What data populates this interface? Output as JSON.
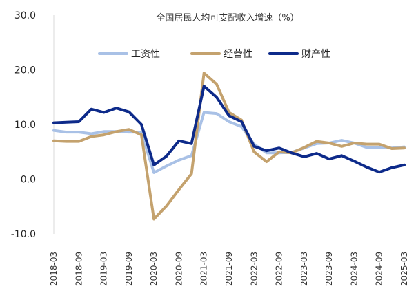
{
  "chart_data": {
    "type": "line",
    "title": "全国居民人均可支配收入增速（%）",
    "xlabel": "",
    "ylabel": "",
    "ylim": [
      -10,
      30
    ],
    "yticks": [
      "30.0",
      "20.0",
      "10.0",
      "0.0",
      "-10.0"
    ],
    "ytick_values": [
      30,
      20,
      10,
      0,
      -10
    ],
    "legend_position": "top-center",
    "grid": false,
    "categories": [
      "2018-03",
      "2018-06",
      "2018-09",
      "2018-12",
      "2019-03",
      "2019-06",
      "2019-09",
      "2019-12",
      "2020-03",
      "2020-06",
      "2020-09",
      "2020-12",
      "2021-03",
      "2021-06",
      "2021-09",
      "2021-12",
      "2022-03",
      "2022-06",
      "2022-09",
      "2022-12",
      "2023-03",
      "2023-06",
      "2023-09",
      "2023-12",
      "2024-03",
      "2024-06",
      "2024-09",
      "2024-12",
      "2025-03"
    ],
    "x_tick_labels": [
      "2018-03",
      "2018-09",
      "2019-03",
      "2019-09",
      "2020-03",
      "2020-09",
      "2021-03",
      "2021-09",
      "2022-03",
      "2022-09",
      "2023-03",
      "2023-09",
      "2024-03",
      "2024-09",
      "2025-03"
    ],
    "series": [
      {
        "name": "工资性",
        "color": "#a9c1e6",
        "values": [
          8.9,
          8.6,
          8.6,
          8.3,
          8.7,
          8.7,
          8.6,
          8.6,
          1.2,
          2.4,
          3.5,
          4.3,
          12.2,
          12.0,
          10.5,
          9.6,
          6.4,
          4.8,
          4.8,
          4.9,
          5.7,
          6.5,
          6.6,
          7.1,
          6.6,
          5.8,
          5.8,
          5.7,
          5.9
        ]
      },
      {
        "name": "经营性",
        "color": "#c4a26e",
        "values": [
          7.0,
          6.9,
          6.9,
          7.8,
          8.1,
          8.7,
          9.1,
          8.1,
          -7.3,
          -4.9,
          -1.9,
          1.0,
          19.4,
          17.4,
          12.2,
          10.8,
          5.0,
          3.2,
          5.0,
          4.8,
          5.8,
          6.9,
          6.6,
          6.0,
          6.6,
          6.4,
          6.4,
          5.6,
          5.7
        ]
      },
      {
        "name": "财产性",
        "color": "#0d2a8a",
        "values": [
          10.3,
          10.4,
          10.5,
          12.8,
          12.2,
          13.0,
          12.3,
          10.0,
          2.6,
          4.2,
          7.0,
          6.5,
          17.0,
          15.0,
          11.6,
          10.5,
          6.0,
          5.2,
          5.7,
          4.8,
          4.1,
          4.7,
          3.7,
          4.3,
          3.3,
          2.2,
          1.3,
          2.1,
          2.6
        ]
      }
    ]
  }
}
